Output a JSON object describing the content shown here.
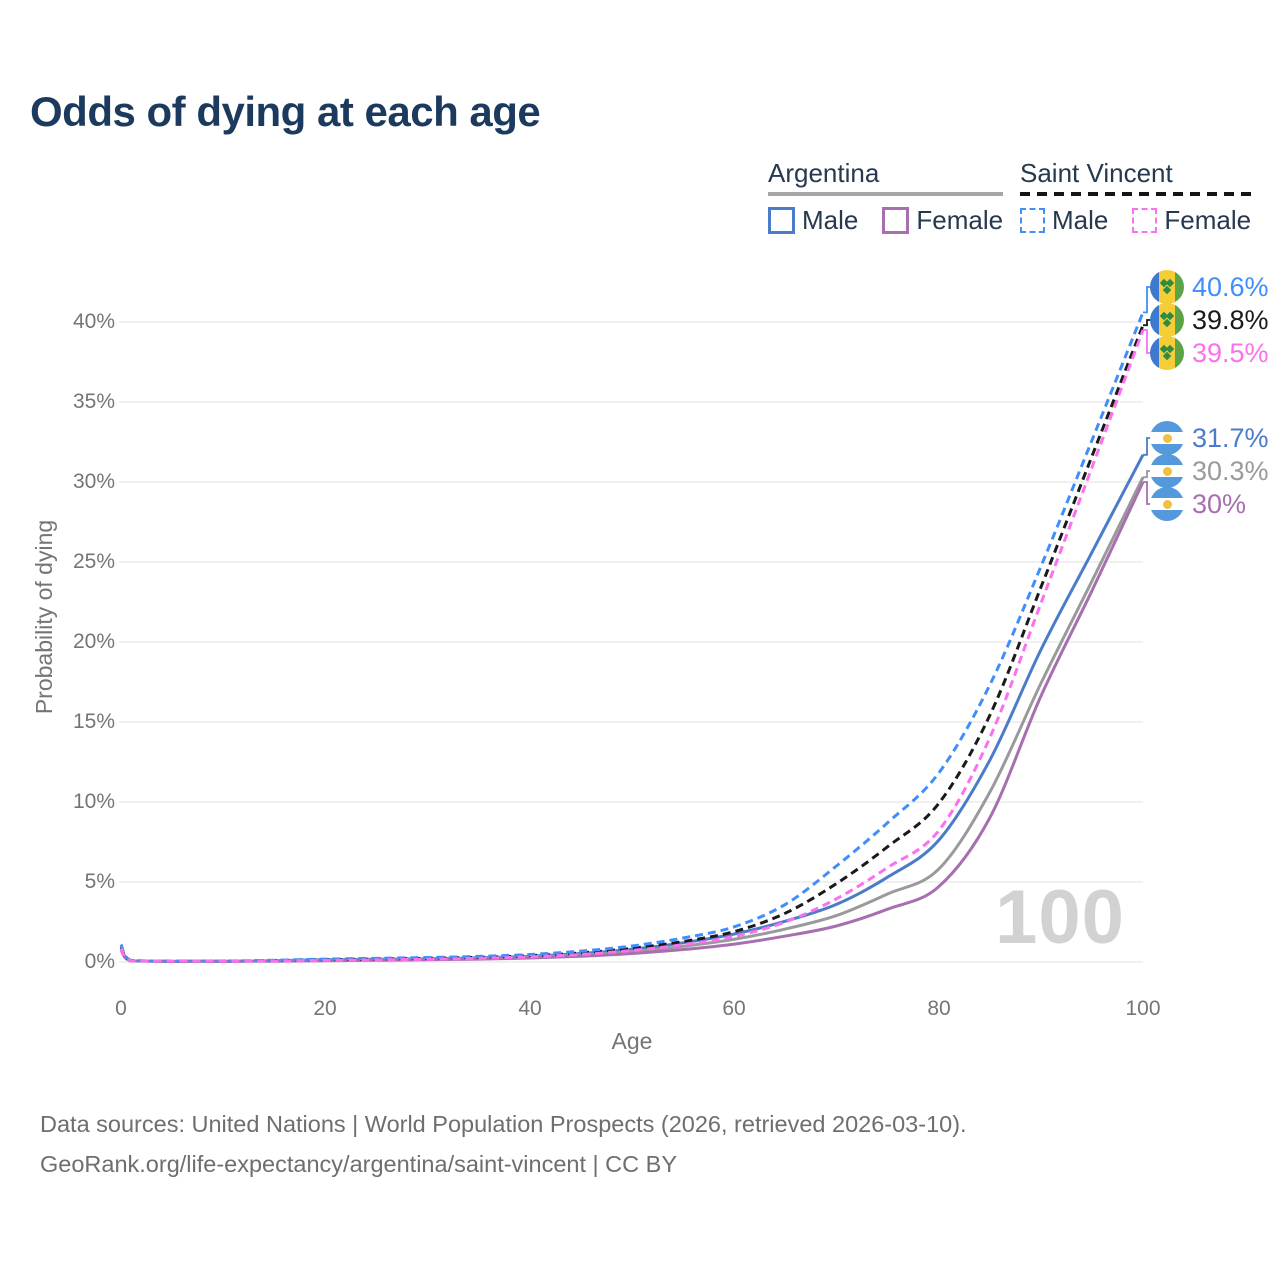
{
  "title": "Odds of dying at each age",
  "legend": {
    "groups": [
      {
        "title": "Argentina",
        "line_style": "solid",
        "underline_color": "#a6a6a6",
        "items": [
          {
            "label": "Male",
            "color": "#4a7cc9"
          },
          {
            "label": "Female",
            "color": "#a76fb0"
          }
        ]
      },
      {
        "title": "Saint Vincent",
        "line_style": "dashed",
        "underline_color": "#141414",
        "items": [
          {
            "label": "Male",
            "color": "#3f8efc"
          },
          {
            "label": "Female",
            "color": "#fb70ee"
          }
        ]
      }
    ]
  },
  "chart_data": {
    "type": "line",
    "title": "Odds of dying at each age",
    "xlabel": "Age",
    "ylabel": "Probability of dying",
    "x_tick_labels": [
      "0",
      "20",
      "40",
      "60",
      "80",
      "100"
    ],
    "y_tick_labels": [
      "0%",
      "5%",
      "10%",
      "15%",
      "20%",
      "25%",
      "30%",
      "35%",
      "40%"
    ],
    "xlim": [
      0,
      100
    ],
    "ylim_percent": [
      0,
      42
    ],
    "grid": "horizontal",
    "legend_position": "top-right",
    "watermark": "100",
    "ages": [
      0,
      1,
      5,
      10,
      15,
      20,
      25,
      30,
      35,
      40,
      45,
      50,
      55,
      60,
      65,
      70,
      75,
      80,
      85,
      90,
      95,
      100
    ],
    "series": [
      {
        "name": "Saint Vincent Male",
        "country": "Saint Vincent",
        "sex": "Male",
        "line_style": "dashed",
        "color": "#3f8efc",
        "flag": "saint-vincent",
        "end_label": "40.6%",
        "values": [
          1.1,
          0.1,
          0.05,
          0.06,
          0.11,
          0.18,
          0.23,
          0.28,
          0.35,
          0.47,
          0.68,
          1.0,
          1.5,
          2.2,
          3.6,
          6.0,
          8.7,
          11.8,
          17.3,
          24.7,
          32.6,
          40.6
        ]
      },
      {
        "name": "Saint Vincent Both sexes",
        "country": "Saint Vincent",
        "sex": "Both",
        "line_style": "dashed",
        "color": "#1a1a1a",
        "flag": "saint-vincent",
        "end_label": "39.8%",
        "values": [
          0.95,
          0.09,
          0.04,
          0.05,
          0.09,
          0.14,
          0.18,
          0.23,
          0.29,
          0.39,
          0.57,
          0.86,
          1.28,
          1.9,
          3.05,
          4.9,
          7.2,
          9.9,
          15.4,
          23.4,
          31.6,
          39.8
        ]
      },
      {
        "name": "Saint Vincent Female",
        "country": "Saint Vincent",
        "sex": "Female",
        "line_style": "dashed",
        "color": "#fb70ee",
        "flag": "saint-vincent",
        "end_label": "39.5%",
        "values": [
          0.85,
          0.08,
          0.04,
          0.04,
          0.06,
          0.1,
          0.13,
          0.17,
          0.23,
          0.32,
          0.47,
          0.72,
          1.08,
          1.6,
          2.5,
          3.95,
          5.9,
          8.2,
          14.0,
          22.4,
          30.9,
          39.5
        ]
      },
      {
        "name": "Argentina Male",
        "country": "Argentina",
        "sex": "Male",
        "line_style": "solid",
        "color": "#4a7cc9",
        "flag": "argentina",
        "end_label": "31.7%",
        "values": [
          0.95,
          0.07,
          0.03,
          0.04,
          0.08,
          0.14,
          0.17,
          0.2,
          0.26,
          0.36,
          0.53,
          0.8,
          1.2,
          1.75,
          2.55,
          3.6,
          5.3,
          7.6,
          12.6,
          19.5,
          25.6,
          31.7
        ]
      },
      {
        "name": "Argentina Both sexes",
        "country": "Argentina",
        "sex": "Both",
        "line_style": "solid",
        "color": "#9a9a9a",
        "flag": "argentina",
        "end_label": "30.3%",
        "values": [
          0.85,
          0.06,
          0.03,
          0.04,
          0.07,
          0.11,
          0.14,
          0.17,
          0.22,
          0.3,
          0.44,
          0.66,
          0.98,
          1.42,
          2.06,
          2.9,
          4.25,
          5.8,
          10.6,
          17.4,
          23.8,
          30.3
        ]
      },
      {
        "name": "Argentina Female",
        "country": "Argentina",
        "sex": "Female",
        "line_style": "solid",
        "color": "#a76fb0",
        "flag": "argentina",
        "end_label": "30%",
        "values": [
          0.75,
          0.06,
          0.03,
          0.03,
          0.05,
          0.08,
          0.11,
          0.14,
          0.18,
          0.25,
          0.36,
          0.53,
          0.78,
          1.12,
          1.62,
          2.25,
          3.3,
          4.7,
          9.0,
          16.6,
          23.2,
          30.0
        ]
      }
    ]
  },
  "footer": {
    "line1": "Data sources: United Nations | World Population Prospects (2026, retrieved 2026-03-10).",
    "line2": "GeoRank.org/life-expectancy/argentina/saint-vincent | CC BY"
  }
}
